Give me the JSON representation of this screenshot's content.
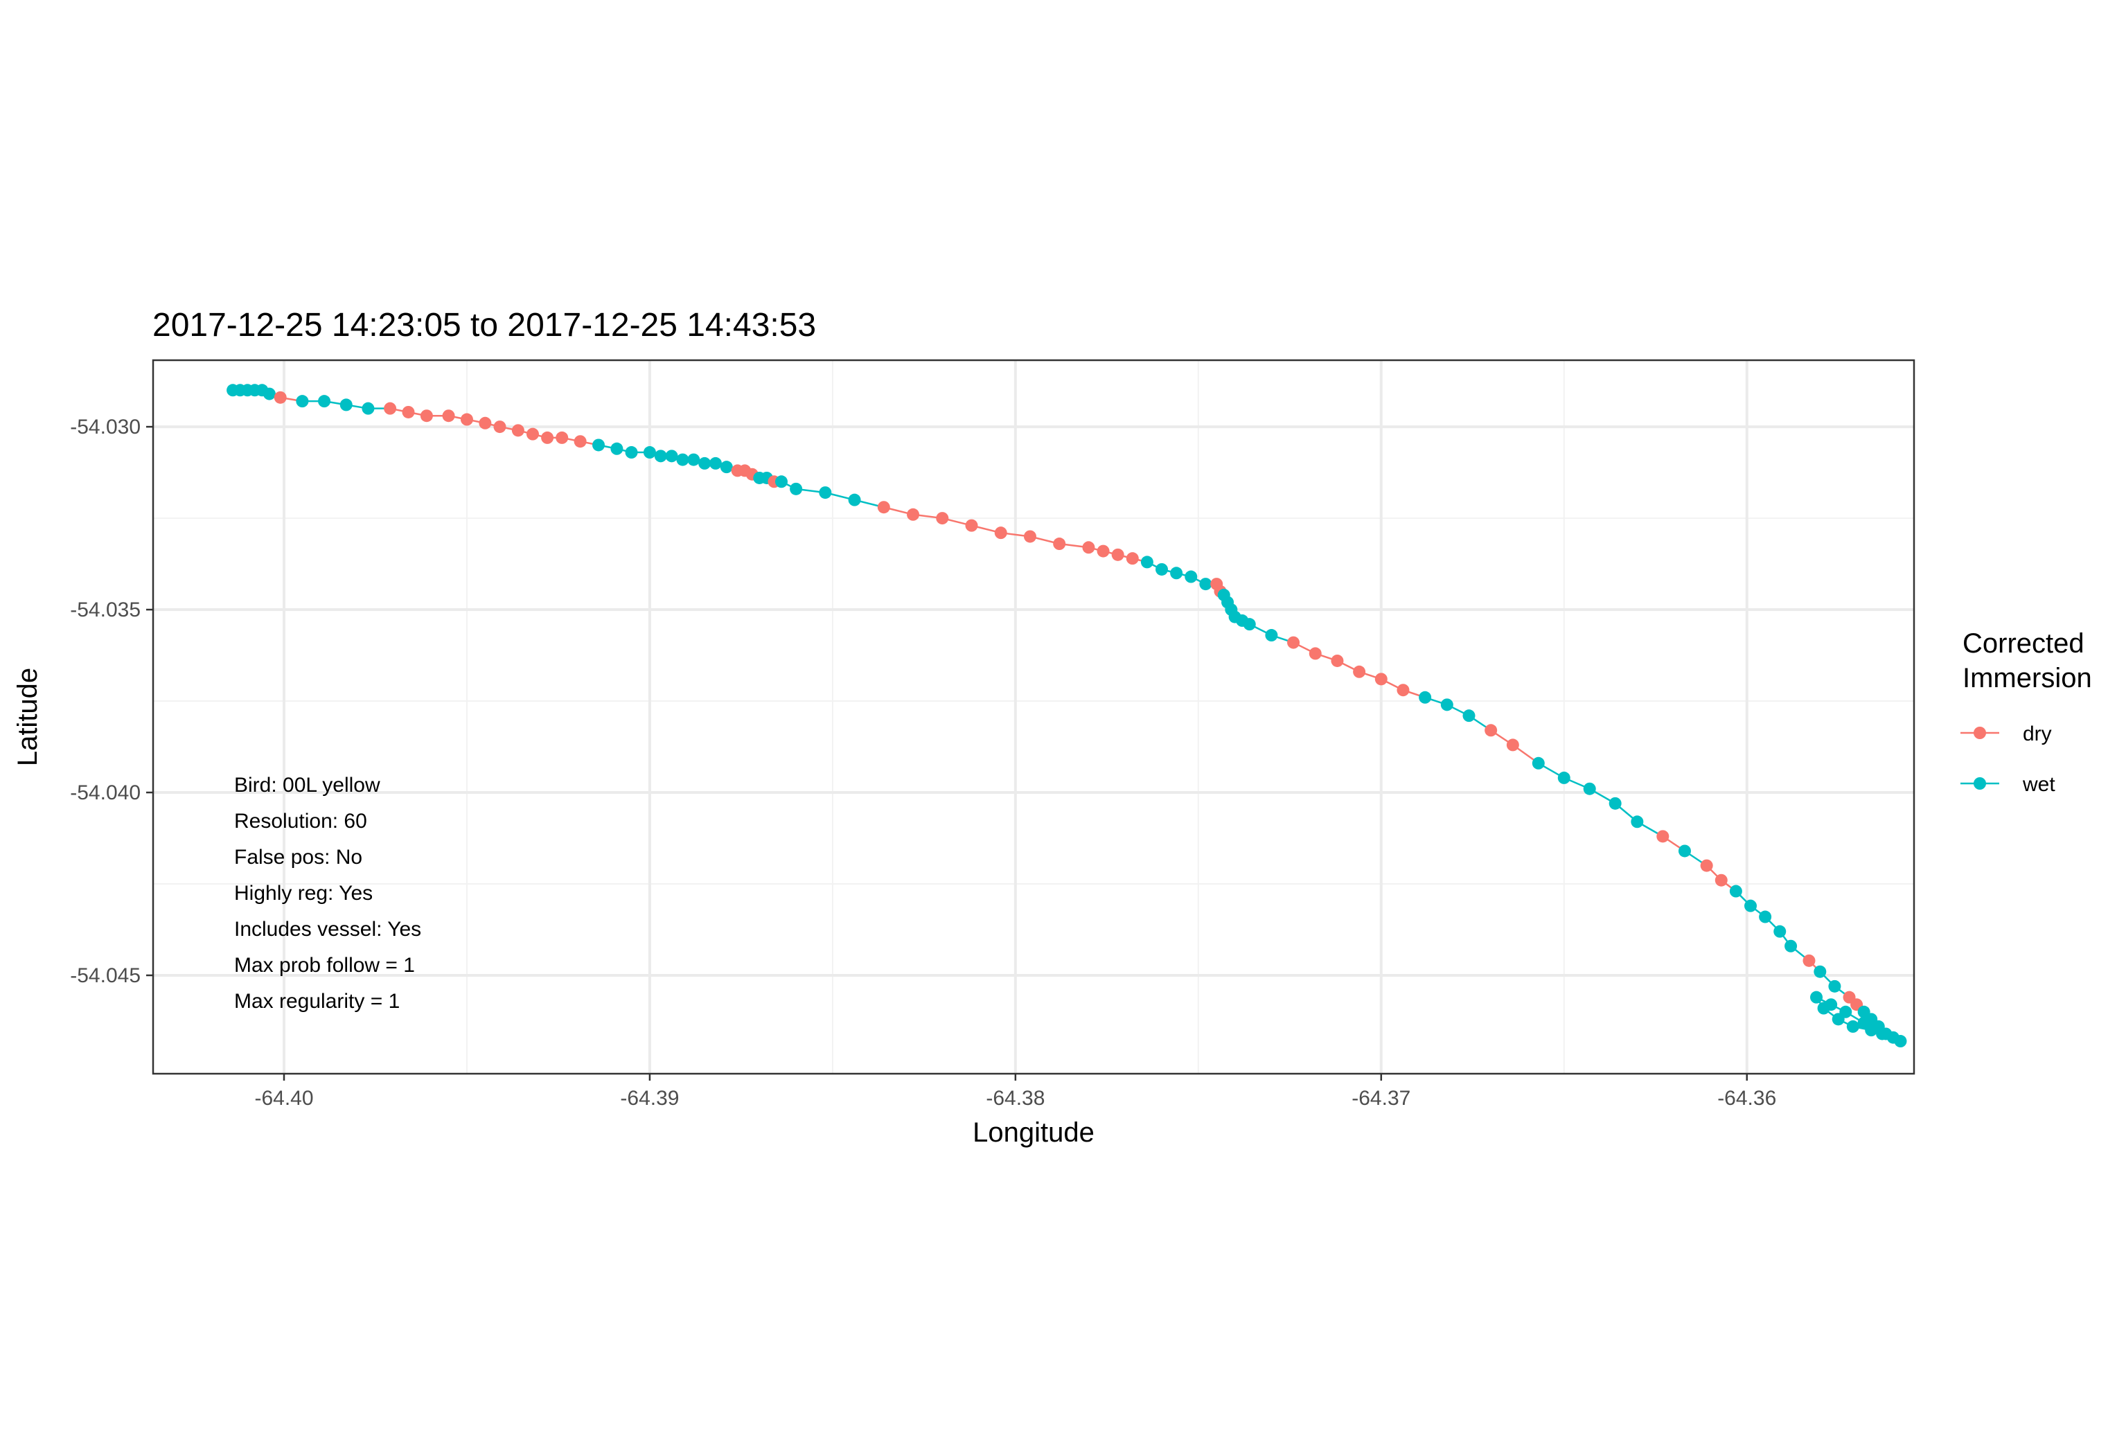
{
  "chart_data": {
    "type": "scatter",
    "title": "2017-12-25 14:23:05 to 2017-12-25 14:43:53",
    "xlabel": "Longitude",
    "ylabel": "Latitude",
    "xlim": [
      -64.40358,
      -64.35543
    ],
    "ylim": [
      -54.04769,
      -54.02818
    ],
    "x_ticks": [
      -64.4,
      -64.39,
      -64.38,
      -64.37,
      -64.36
    ],
    "x_tick_labels": [
      "-64.40",
      "-64.39",
      "-64.38",
      "-64.37",
      "-64.36"
    ],
    "y_ticks": [
      -54.03,
      -54.035,
      -54.04,
      -54.045
    ],
    "y_tick_labels": [
      "-54.030",
      "-54.035",
      "-54.040",
      "-54.045"
    ],
    "grid": true,
    "legend": {
      "title": [
        "Corrected",
        "Immersion"
      ],
      "position": "right",
      "entries": [
        {
          "label": "dry",
          "color": "#F8766D"
        },
        {
          "label": "wet",
          "color": "#00BFC4"
        }
      ]
    },
    "annotations": [
      "Bird: 00L yellow",
      "Resolution: 60",
      "False pos: No",
      "Highly reg: Yes",
      "Includes vessel: Yes",
      "Max prob follow = 1",
      "Max regularity = 1"
    ],
    "points": [
      [
        -64.4014,
        -54.029,
        "wet"
      ],
      [
        -64.4012,
        -54.029,
        "wet"
      ],
      [
        -64.401,
        -54.029,
        "wet"
      ],
      [
        -64.4008,
        -54.029,
        "wet"
      ],
      [
        -64.4006,
        -54.029,
        "wet"
      ],
      [
        -64.4004,
        -54.0291,
        "wet"
      ],
      [
        -64.4001,
        -54.0292,
        "dry"
      ],
      [
        -64.3995,
        -54.0293,
        "wet"
      ],
      [
        -64.3989,
        -54.0293,
        "wet"
      ],
      [
        -64.3983,
        -54.0294,
        "wet"
      ],
      [
        -64.3977,
        -54.0295,
        "wet"
      ],
      [
        -64.3971,
        -54.0295,
        "dry"
      ],
      [
        -64.3966,
        -54.0296,
        "dry"
      ],
      [
        -64.3961,
        -54.0297,
        "dry"
      ],
      [
        -64.3955,
        -54.0297,
        "dry"
      ],
      [
        -64.395,
        -54.0298,
        "dry"
      ],
      [
        -64.3945,
        -54.0299,
        "dry"
      ],
      [
        -64.3941,
        -54.03,
        "dry"
      ],
      [
        -64.3936,
        -54.0301,
        "dry"
      ],
      [
        -64.3932,
        -54.0302,
        "dry"
      ],
      [
        -64.3928,
        -54.0303,
        "dry"
      ],
      [
        -64.3924,
        -54.0303,
        "dry"
      ],
      [
        -64.3919,
        -54.0304,
        "dry"
      ],
      [
        -64.3914,
        -54.0305,
        "wet"
      ],
      [
        -64.3909,
        -54.0306,
        "wet"
      ],
      [
        -64.3905,
        -54.0307,
        "wet"
      ],
      [
        -64.39,
        -54.0307,
        "wet"
      ],
      [
        -64.3897,
        -54.0308,
        "wet"
      ],
      [
        -64.3894,
        -54.0308,
        "wet"
      ],
      [
        -64.3891,
        -54.0309,
        "wet"
      ],
      [
        -64.3888,
        -54.0309,
        "wet"
      ],
      [
        -64.3885,
        -54.031,
        "wet"
      ],
      [
        -64.3882,
        -54.031,
        "wet"
      ],
      [
        -64.3879,
        -54.0311,
        "wet"
      ],
      [
        -64.3876,
        -54.0312,
        "dry"
      ],
      [
        -64.3874,
        -54.0312,
        "dry"
      ],
      [
        -64.3872,
        -54.0313,
        "dry"
      ],
      [
        -64.387,
        -54.0314,
        "wet"
      ],
      [
        -64.3868,
        -54.0314,
        "wet"
      ],
      [
        -64.3866,
        -54.0315,
        "dry"
      ],
      [
        -64.3864,
        -54.0315,
        "wet"
      ],
      [
        -64.386,
        -54.0317,
        "wet"
      ],
      [
        -64.3852,
        -54.0318,
        "wet"
      ],
      [
        -64.3844,
        -54.032,
        "wet"
      ],
      [
        -64.3836,
        -54.0322,
        "dry"
      ],
      [
        -64.3828,
        -54.0324,
        "dry"
      ],
      [
        -64.382,
        -54.0325,
        "dry"
      ],
      [
        -64.3812,
        -54.0327,
        "dry"
      ],
      [
        -64.3804,
        -54.0329,
        "dry"
      ],
      [
        -64.3796,
        -54.033,
        "dry"
      ],
      [
        -64.3788,
        -54.0332,
        "dry"
      ],
      [
        -64.378,
        -54.0333,
        "dry"
      ],
      [
        -64.3776,
        -54.0334,
        "dry"
      ],
      [
        -64.3772,
        -54.0335,
        "dry"
      ],
      [
        -64.3768,
        -54.0336,
        "dry"
      ],
      [
        -64.3764,
        -54.0337,
        "wet"
      ],
      [
        -64.376,
        -54.0339,
        "wet"
      ],
      [
        -64.3756,
        -54.034,
        "wet"
      ],
      [
        -64.3752,
        -54.0341,
        "wet"
      ],
      [
        -64.3748,
        -54.0343,
        "wet"
      ],
      [
        -64.3745,
        -54.0343,
        "dry"
      ],
      [
        -64.3744,
        -54.0345,
        "dry"
      ],
      [
        -64.3743,
        -54.0346,
        "wet"
      ],
      [
        -64.3742,
        -54.0348,
        "wet"
      ],
      [
        -64.3741,
        -54.035,
        "wet"
      ],
      [
        -64.374,
        -54.0352,
        "wet"
      ],
      [
        -64.3738,
        -54.0353,
        "wet"
      ],
      [
        -64.3736,
        -54.0354,
        "wet"
      ],
      [
        -64.373,
        -54.0357,
        "wet"
      ],
      [
        -64.3724,
        -54.0359,
        "dry"
      ],
      [
        -64.3718,
        -54.0362,
        "dry"
      ],
      [
        -64.3712,
        -54.0364,
        "dry"
      ],
      [
        -64.3706,
        -54.0367,
        "dry"
      ],
      [
        -64.37,
        -54.0369,
        "dry"
      ],
      [
        -64.3694,
        -54.0372,
        "dry"
      ],
      [
        -64.3688,
        -54.0374,
        "wet"
      ],
      [
        -64.3682,
        -54.0376,
        "wet"
      ],
      [
        -64.3676,
        -54.0379,
        "wet"
      ],
      [
        -64.367,
        -54.0383,
        "dry"
      ],
      [
        -64.3664,
        -54.0387,
        "dry"
      ],
      [
        -64.3657,
        -54.0392,
        "wet"
      ],
      [
        -64.365,
        -54.0396,
        "wet"
      ],
      [
        -64.3643,
        -54.0399,
        "wet"
      ],
      [
        -64.3636,
        -54.0403,
        "wet"
      ],
      [
        -64.363,
        -54.0408,
        "wet"
      ],
      [
        -64.3623,
        -54.0412,
        "dry"
      ],
      [
        -64.3617,
        -54.0416,
        "wet"
      ],
      [
        -64.3611,
        -54.042,
        "dry"
      ],
      [
        -64.3607,
        -54.0424,
        "dry"
      ],
      [
        -64.3603,
        -54.0427,
        "wet"
      ],
      [
        -64.3599,
        -54.0431,
        "wet"
      ],
      [
        -64.3595,
        -54.0434,
        "wet"
      ],
      [
        -64.3591,
        -54.0438,
        "wet"
      ],
      [
        -64.3588,
        -54.0442,
        "wet"
      ],
      [
        -64.3583,
        -54.0446,
        "dry"
      ],
      [
        -64.358,
        -54.0449,
        "wet"
      ],
      [
        -64.3576,
        -54.0453,
        "wet"
      ],
      [
        -64.3572,
        -54.0456,
        "dry"
      ],
      [
        -64.357,
        -54.0458,
        "dry"
      ],
      [
        -64.3568,
        -54.046,
        "wet"
      ],
      [
        -64.3566,
        -54.0462,
        "wet"
      ],
      [
        -64.3564,
        -54.0464,
        "wet"
      ],
      [
        -64.3562,
        -54.0466,
        "wet"
      ],
      [
        -64.356,
        -54.0467,
        "wet"
      ],
      [
        -64.3558,
        -54.0468,
        "wet"
      ],
      [
        -64.3563,
        -54.0466,
        "wet"
      ],
      [
        -64.3568,
        -54.0463,
        "wet"
      ],
      [
        -64.3573,
        -54.046,
        "wet"
      ],
      [
        -64.3577,
        -54.0458,
        "wet"
      ],
      [
        -64.3581,
        -54.0456,
        "wet"
      ],
      [
        -64.3579,
        -54.0459,
        "wet"
      ],
      [
        -64.3575,
        -54.0462,
        "wet"
      ],
      [
        -64.3571,
        -54.0464,
        "wet"
      ],
      [
        -64.3566,
        -54.0465,
        "wet"
      ]
    ]
  }
}
